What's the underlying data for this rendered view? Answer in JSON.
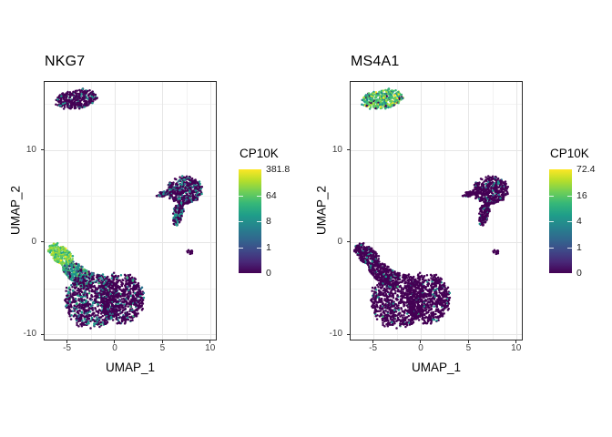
{
  "style": {
    "background": "#ffffff",
    "panel_border": "#2b2b2b",
    "grid_major": "#e6e6e6",
    "grid_minor": "#f2f2f2",
    "axis_text": "#404040",
    "colormap_low": "#440154",
    "colormap_mid": "#21918c",
    "colormap_high": "#fde725"
  },
  "chart_data": [
    {
      "type": "scatter",
      "title": "NKG7",
      "xlabel": "UMAP_1",
      "ylabel": "UMAP_2",
      "xlim": [
        -7.35,
        10.6
      ],
      "ylim": [
        -10.55,
        17.35
      ],
      "x_ticks": [
        -5,
        0,
        5,
        10
      ],
      "y_ticks": [
        10,
        0,
        -10
      ],
      "x_minor": [
        -2.5,
        2.5,
        7.5
      ],
      "y_minor": [
        15,
        5,
        -5
      ],
      "grid": true,
      "point_radius_px": 1.25,
      "colorbar": {
        "title": "CP10K",
        "tick_labels": [
          "381.8",
          "64",
          "8",
          "1",
          "0"
        ],
        "tick_fractions_from_top": [
          0,
          0.25,
          0.5,
          0.75,
          1
        ],
        "colormap": "viridis",
        "scale": "log-like"
      },
      "clusters": [
        {
          "id": "b_cell_island",
          "cx": -4.05,
          "cy": 15.5,
          "rx": 2.2,
          "ry": 1.0,
          "rot": 8,
          "n": 330,
          "palette": [
            [
              "#440154",
              0.8
            ],
            [
              "#470d60",
              0.05
            ],
            [
              "#21918c",
              0.11
            ],
            [
              "#2c728e",
              0.04
            ]
          ]
        },
        {
          "id": "mono_main",
          "cx": 7.35,
          "cy": 5.6,
          "rx": 1.8,
          "ry": 1.5,
          "rot": 0,
          "n": 430,
          "palette": [
            [
              "#440154",
              0.7
            ],
            [
              "#46085c",
              0.06
            ],
            [
              "#21918c",
              0.17
            ],
            [
              "#2c728e",
              0.05
            ],
            [
              "#1f9e89",
              0.02
            ]
          ]
        },
        {
          "id": "mono_arm",
          "cx": 5.25,
          "cy": 5.25,
          "rx": 0.9,
          "ry": 0.22,
          "rot": 12,
          "n": 60,
          "palette": [
            [
              "#440154",
              0.84
            ],
            [
              "#21918c",
              0.12
            ],
            [
              "#2c728e",
              0.04
            ]
          ]
        },
        {
          "id": "mono_tail",
          "cx": 6.65,
          "cy": 3.1,
          "rx": 0.5,
          "ry": 1.3,
          "rot": -10,
          "n": 130,
          "palette": [
            [
              "#440154",
              0.58
            ],
            [
              "#21918c",
              0.27
            ],
            [
              "#1f9e89",
              0.1
            ],
            [
              "#2c728e",
              0.05
            ]
          ]
        },
        {
          "id": "small_dot",
          "cx": 7.9,
          "cy": -1.05,
          "rx": 0.3,
          "ry": 0.25,
          "rot": 0,
          "n": 16,
          "palette": [
            [
              "#440154",
              1
            ]
          ]
        },
        {
          "id": "nk_tip",
          "cx": -5.6,
          "cy": -1.4,
          "rx": 1.6,
          "ry": 0.85,
          "rot": -42,
          "n": 240,
          "palette": [
            [
              "#7ad151",
              0.26
            ],
            [
              "#a0da39",
              0.2
            ],
            [
              "#5ec962",
              0.18
            ],
            [
              "#35b779",
              0.14
            ],
            [
              "#c2df23",
              0.09
            ],
            [
              "#fde725",
              0.05
            ],
            [
              "#22a884",
              0.06
            ],
            [
              "#21918c",
              0.02
            ]
          ]
        },
        {
          "id": "transition",
          "cx": -3.9,
          "cy": -3.5,
          "rx": 1.8,
          "ry": 1.0,
          "rot": -40,
          "n": 260,
          "palette": [
            [
              "#35b779",
              0.2
            ],
            [
              "#21918c",
              0.22
            ],
            [
              "#1f9e89",
              0.12
            ],
            [
              "#5ec962",
              0.1
            ],
            [
              "#2c728e",
              0.08
            ],
            [
              "#440154",
              0.24
            ],
            [
              "#3b528b",
              0.04
            ]
          ]
        },
        {
          "id": "body_left",
          "cx": -2.4,
          "cy": -6.3,
          "rx": 2.8,
          "ry": 3.0,
          "rot": 0,
          "n": 780,
          "palette": [
            [
              "#440154",
              0.7
            ],
            [
              "#21918c",
              0.17
            ],
            [
              "#2c728e",
              0.05
            ],
            [
              "#1f9e89",
              0.04
            ],
            [
              "#35b779",
              0.03
            ],
            [
              "#3b528b",
              0.01
            ]
          ]
        },
        {
          "id": "body_right",
          "cx": 0.7,
          "cy": -6.1,
          "rx": 2.3,
          "ry": 2.7,
          "rot": 0,
          "n": 680,
          "palette": [
            [
              "#440154",
              0.86
            ],
            [
              "#21918c",
              0.1
            ],
            [
              "#2c728e",
              0.03
            ],
            [
              "#35b779",
              0.01
            ]
          ]
        }
      ]
    },
    {
      "type": "scatter",
      "title": "MS4A1",
      "xlabel": "UMAP_1",
      "ylabel": "UMAP_2",
      "xlim": [
        -7.35,
        10.6
      ],
      "ylim": [
        -10.55,
        17.35
      ],
      "x_ticks": [
        -5,
        0,
        5,
        10
      ],
      "y_ticks": [
        10,
        0,
        -10
      ],
      "x_minor": [
        -2.5,
        2.5,
        7.5
      ],
      "y_minor": [
        15,
        5,
        -5
      ],
      "grid": true,
      "point_radius_px": 1.25,
      "colorbar": {
        "title": "CP10K",
        "tick_labels": [
          "72.4",
          "16",
          "4",
          "1",
          "0"
        ],
        "tick_fractions_from_top": [
          0,
          0.25,
          0.5,
          0.75,
          1
        ],
        "colormap": "viridis",
        "scale": "log-like"
      },
      "clusters": [
        {
          "id": "b_cell_island",
          "cx": -4.05,
          "cy": 15.5,
          "rx": 2.2,
          "ry": 1.0,
          "rot": 8,
          "n": 330,
          "palette": [
            [
              "#35b779",
              0.22
            ],
            [
              "#5ec962",
              0.16
            ],
            [
              "#4ac16d",
              0.12
            ],
            [
              "#a0da39",
              0.09
            ],
            [
              "#addc30",
              0.06
            ],
            [
              "#fde725",
              0.06
            ],
            [
              "#21918c",
              0.12
            ],
            [
              "#1f9e89",
              0.05
            ],
            [
              "#440154",
              0.09
            ],
            [
              "#2c728e",
              0.03
            ]
          ]
        },
        {
          "id": "mono_main",
          "cx": 7.35,
          "cy": 5.6,
          "rx": 1.8,
          "ry": 1.5,
          "rot": 0,
          "n": 430,
          "palette": [
            [
              "#440154",
              0.92
            ],
            [
              "#21918c",
              0.06
            ],
            [
              "#2c728e",
              0.02
            ]
          ]
        },
        {
          "id": "mono_arm",
          "cx": 5.25,
          "cy": 5.25,
          "rx": 0.9,
          "ry": 0.22,
          "rot": 12,
          "n": 60,
          "palette": [
            [
              "#440154",
              0.94
            ],
            [
              "#21918c",
              0.06
            ]
          ]
        },
        {
          "id": "mono_tail",
          "cx": 6.65,
          "cy": 3.1,
          "rx": 0.5,
          "ry": 1.3,
          "rot": -10,
          "n": 130,
          "palette": [
            [
              "#440154",
              0.9
            ],
            [
              "#21918c",
              0.1
            ]
          ]
        },
        {
          "id": "small_dot",
          "cx": 7.9,
          "cy": -1.05,
          "rx": 0.3,
          "ry": 0.25,
          "rot": 0,
          "n": 16,
          "palette": [
            [
              "#440154",
              1
            ]
          ]
        },
        {
          "id": "nk_tip",
          "cx": -5.6,
          "cy": -1.4,
          "rx": 1.6,
          "ry": 0.85,
          "rot": -42,
          "n": 240,
          "palette": [
            [
              "#440154",
              0.93
            ],
            [
              "#21918c",
              0.07
            ]
          ]
        },
        {
          "id": "transition",
          "cx": -3.9,
          "cy": -3.5,
          "rx": 1.8,
          "ry": 1.0,
          "rot": -40,
          "n": 260,
          "palette": [
            [
              "#440154",
              0.94
            ],
            [
              "#21918c",
              0.06
            ]
          ]
        },
        {
          "id": "body_left",
          "cx": -2.4,
          "cy": -6.3,
          "rx": 2.8,
          "ry": 3.0,
          "rot": 0,
          "n": 780,
          "palette": [
            [
              "#440154",
              0.93
            ],
            [
              "#21918c",
              0.06
            ],
            [
              "#35b779",
              0.01
            ]
          ]
        },
        {
          "id": "body_right",
          "cx": 0.7,
          "cy": -6.1,
          "rx": 2.3,
          "ry": 2.7,
          "rot": 0,
          "n": 680,
          "palette": [
            [
              "#440154",
              0.94
            ],
            [
              "#21918c",
              0.06
            ]
          ]
        }
      ]
    }
  ]
}
